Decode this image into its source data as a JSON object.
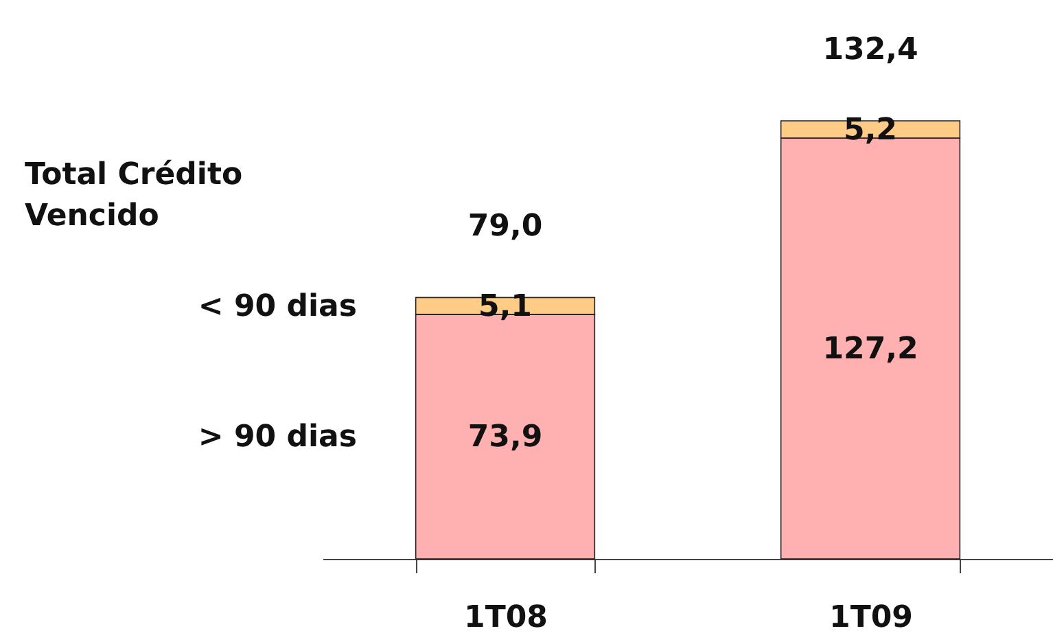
{
  "chart_data": {
    "type": "bar",
    "stacked": true,
    "legend_title": "Total Crédito Vencido",
    "categories": [
      "1T08",
      "1T09"
    ],
    "series": [
      {
        "name": "> 90 dias",
        "color": "#ffb0b0",
        "values": [
          73.9,
          127.2
        ],
        "value_labels": [
          "73,9",
          "127,2"
        ]
      },
      {
        "name": "< 90 dias",
        "color": "#ffcc88",
        "values": [
          5.1,
          5.2
        ],
        "value_labels": [
          "5,1",
          "5,2"
        ]
      }
    ],
    "totals": [
      "79,0",
      "132,4"
    ]
  }
}
